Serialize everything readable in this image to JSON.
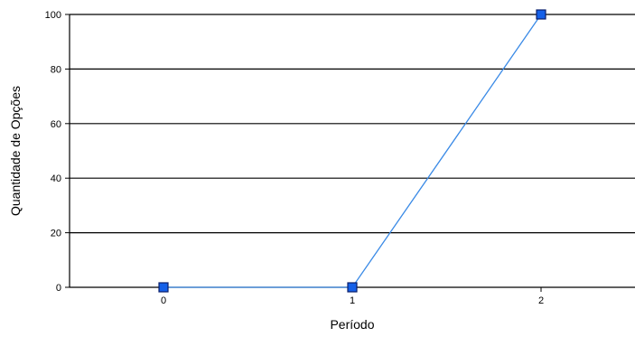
{
  "chart_data": {
    "type": "line",
    "title": "",
    "xlabel": "Período",
    "ylabel": "Quantidade de Opções",
    "categories": [
      "0",
      "1",
      "2"
    ],
    "series": [
      {
        "values": [
          0,
          0,
          100
        ]
      }
    ],
    "ylim": [
      0,
      100
    ],
    "yticks": [
      0,
      20,
      40,
      60,
      80,
      100
    ],
    "grid": "horizontal",
    "legend": "none",
    "colors": {
      "line": "#3a8ae6",
      "marker": "#1560e8",
      "marker_edge": "#0a1f6b"
    }
  }
}
